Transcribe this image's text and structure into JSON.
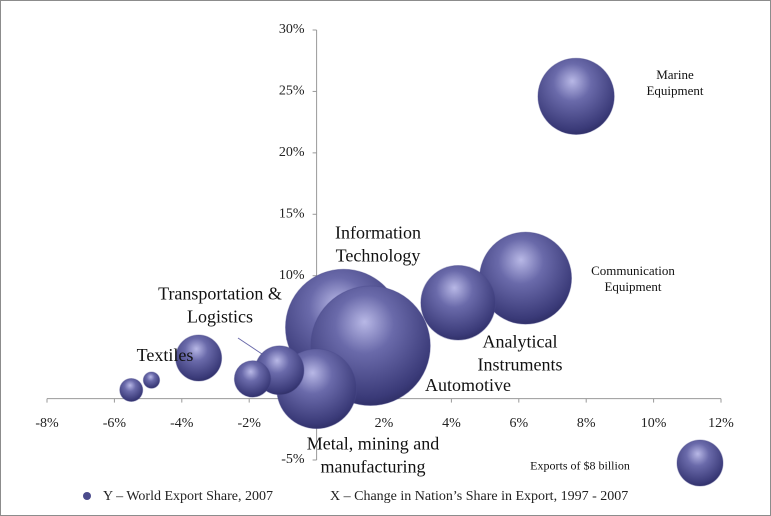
{
  "chart_data": {
    "type": "bubble",
    "categories": [
      "Marine\nEquipment",
      "Communication\nEquipment",
      "Analytical\nInstruments",
      "Information\nTechnology",
      "Automotive",
      "Metal, mining and\nmanufacturing",
      "Transportation &\nLogistics",
      null,
      "Textiles",
      null,
      null
    ],
    "x": [
      7.7,
      6.2,
      4.2,
      0.8,
      1.6,
      0,
      -1.1,
      -1.9,
      -3.5,
      -4.9,
      -5.5
    ],
    "values": [
      24.6,
      9.8,
      7.8,
      5.8,
      4.3,
      0.8,
      2.3,
      1.6,
      3.3,
      1.5,
      0.7
    ],
    "sizes": [
      22,
      32,
      21,
      51,
      54,
      24,
      9,
      5,
      8,
      1,
      2
    ],
    "color": "#4b4b8c",
    "xlim": [
      -8,
      12
    ],
    "xticks": [
      {
        "value": -8,
        "label": "-8%"
      },
      {
        "value": -6,
        "label": "-6%"
      },
      {
        "value": -4,
        "label": "-4%"
      },
      {
        "value": -2,
        "label": "-2%"
      },
      {
        "value": 0,
        "label": "0%"
      },
      {
        "value": 2,
        "label": "2%"
      },
      {
        "value": 4,
        "label": "4%"
      },
      {
        "value": 6,
        "label": "6%"
      },
      {
        "value": 8,
        "label": "8%"
      },
      {
        "value": 10,
        "label": "10%"
      },
      {
        "value": 12,
        "label": "12%"
      }
    ],
    "ylim": [
      -5,
      30
    ],
    "yticks": [
      {
        "value": -5,
        "label": "-5%"
      },
      {
        "value": 0,
        "label": "0%"
      },
      {
        "value": 5,
        "label": "5%"
      },
      {
        "value": 10,
        "label": "10%"
      },
      {
        "value": 15,
        "label": "15%"
      },
      {
        "value": 20,
        "label": "20%"
      },
      {
        "value": 25,
        "label": "25%"
      },
      {
        "value": 30,
        "label": "30%"
      }
    ],
    "size_legend": {
      "value": 8,
      "label": "Exports of $8 billion"
    },
    "y_label": "Y – World Export Share, 2007",
    "x_label": "X – Change in Nation’s Share in Export, 1997 - 2007"
  }
}
